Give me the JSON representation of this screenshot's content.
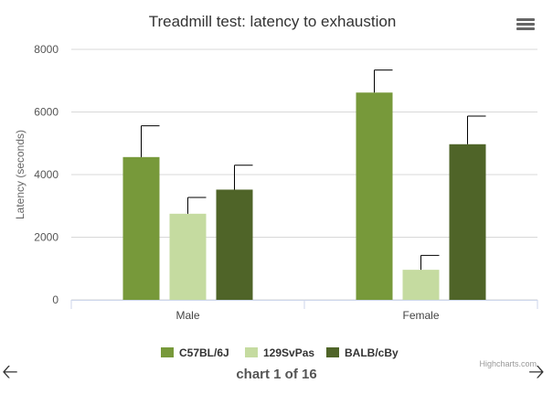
{
  "chart_data": {
    "type": "bar",
    "title": "Treadmill test: latency to exhaustion",
    "ylabel": "Latency (seconds)",
    "xlabel": "",
    "categories": [
      "Male",
      "Female"
    ],
    "ylim": [
      0,
      8000
    ],
    "yticks": [
      "0",
      "2000",
      "4000",
      "6000",
      "8000"
    ],
    "grid": true,
    "legend_position": "bottom",
    "series": [
      {
        "name": "C57BL/6J",
        "color": "#77993a",
        "values": [
          4560,
          6620
        ],
        "error": [
          1000,
          720
        ]
      },
      {
        "name": "129SvPas",
        "color": "#c5dba0",
        "values": [
          2750,
          960
        ],
        "error": [
          520,
          460
        ]
      },
      {
        "name": "BALB/cBy",
        "color": "#4f6428",
        "values": [
          3520,
          4970
        ],
        "error": [
          780,
          900
        ]
      }
    ]
  },
  "credits": "Highcharts.com",
  "pager": "chart 1 of 16",
  "icons": {
    "menu": "hamburger-menu-icon",
    "prev": "arrow-left-icon",
    "next": "arrow-right-icon"
  }
}
